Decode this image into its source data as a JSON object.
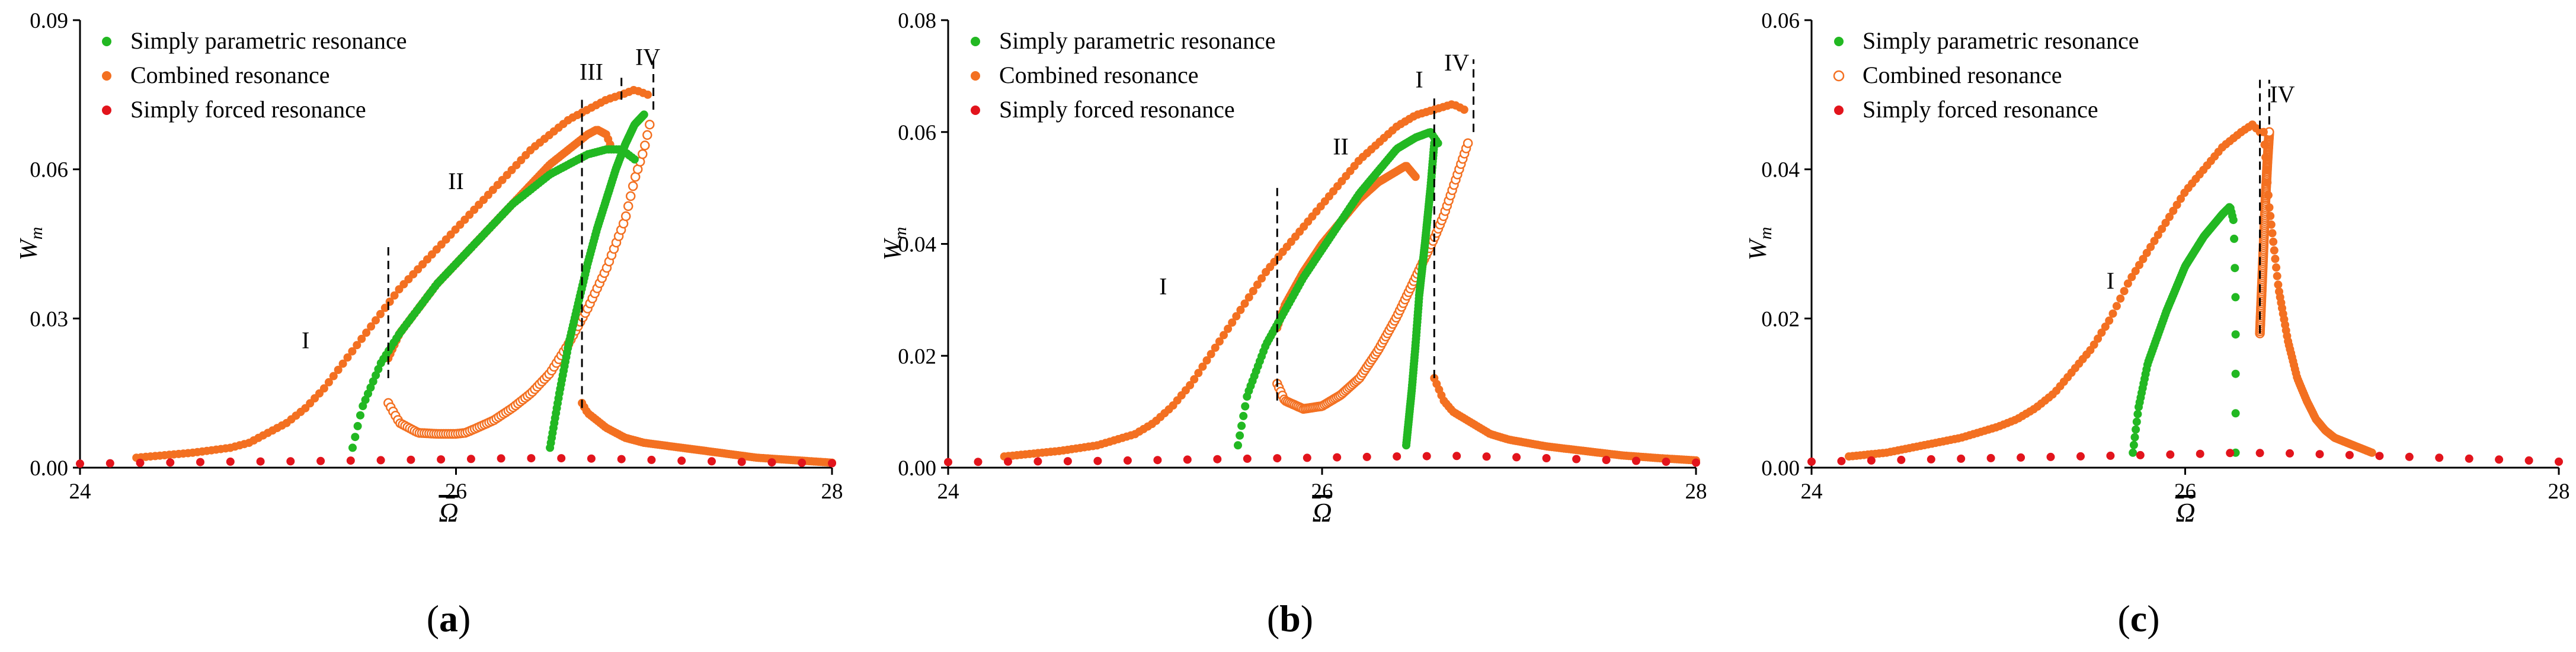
{
  "colors": {
    "parametric": "#22b822",
    "combined": "#f37021",
    "forced": "#e2141c"
  },
  "chart_data": [
    {
      "type": "scatter",
      "panel_label": "a",
      "xlabel": "Ω",
      "ylabel": "W",
      "ylabel_sub": "m",
      "xlim": [
        24,
        28
      ],
      "ylim": [
        0,
        0.09
      ],
      "xticks": [
        24,
        26,
        28
      ],
      "xtick_labels": [
        "24",
        "26",
        "28"
      ],
      "yticks": [
        0,
        0.03,
        0.06,
        0.09
      ],
      "ytick_labels": [
        "0.00",
        "0.03",
        "0.06",
        "0.09"
      ],
      "legend": [
        {
          "label": "Simply parametric resonance",
          "series": "parametric",
          "marker": "filled"
        },
        {
          "label": "Combined resonance",
          "series": "combined",
          "marker": "filled"
        },
        {
          "label": "Simply forced resonance",
          "series": "forced",
          "marker": "filled"
        }
      ],
      "regions": [
        {
          "label": "I",
          "x": 25.2,
          "y": 0.024
        },
        {
          "label": "II",
          "x": 26.0,
          "y": 0.056
        },
        {
          "label": "III",
          "x": 26.72,
          "y": 0.078
        },
        {
          "label": "IV",
          "x": 27.02,
          "y": 0.081
        }
      ],
      "boundaries": [
        {
          "x": 25.64,
          "y0": 0.018,
          "y1": 0.045
        },
        {
          "x": 26.67,
          "y0": 0.012,
          "y1": 0.075
        },
        {
          "x": 26.88,
          "y0": 0.074,
          "y1": 0.079
        },
        {
          "x": 27.05,
          "y0": 0.072,
          "y1": 0.083
        }
      ],
      "series": [
        {
          "name": "Combined resonance (stable, upper branch)",
          "color": "combined",
          "marker": "filled",
          "x": [
            24.3,
            24.6,
            24.8,
            24.9,
            25.0,
            25.1,
            25.2,
            25.3,
            25.4,
            25.5,
            25.6,
            25.7,
            25.8,
            25.9,
            26.0,
            26.1,
            26.2,
            26.3,
            26.4,
            26.5,
            26.6,
            26.7,
            26.8,
            26.88,
            26.95,
            27.02
          ],
          "y": [
            0.002,
            0.003,
            0.004,
            0.005,
            0.007,
            0.009,
            0.012,
            0.016,
            0.021,
            0.026,
            0.031,
            0.036,
            0.04,
            0.044,
            0.048,
            0.052,
            0.056,
            0.06,
            0.064,
            0.067,
            0.07,
            0.072,
            0.074,
            0.075,
            0.076,
            0.075
          ]
        },
        {
          "name": "Combined resonance (unstable, lower branch)",
          "color": "combined",
          "marker": "open",
          "x": [
            25.64,
            25.7,
            25.75,
            25.8,
            25.9,
            26.0,
            26.05,
            26.1,
            26.2,
            26.3,
            26.4,
            26.5,
            26.6,
            26.7,
            26.8,
            26.9,
            26.95,
            27.0,
            27.03
          ],
          "y": [
            0.013,
            0.009,
            0.008,
            0.007,
            0.0068,
            0.0068,
            0.007,
            0.0078,
            0.0095,
            0.012,
            0.015,
            0.019,
            0.025,
            0.032,
            0.04,
            0.05,
            0.058,
            0.064,
            0.069
          ]
        },
        {
          "name": "Combined resonance (stable, inner branch)",
          "color": "combined",
          "marker": "filled",
          "x": [
            25.64,
            25.7,
            25.8,
            25.9,
            26.0,
            26.1,
            26.2,
            26.3,
            26.4,
            26.5,
            26.6,
            26.7,
            26.75,
            26.8,
            26.82
          ],
          "y": [
            0.022,
            0.027,
            0.032,
            0.037,
            0.041,
            0.045,
            0.049,
            0.053,
            0.057,
            0.061,
            0.064,
            0.067,
            0.068,
            0.067,
            0.065
          ]
        },
        {
          "name": "Combined resonance (stable, decay branch)",
          "color": "combined",
          "marker": "filled",
          "x": [
            26.67,
            26.7,
            26.8,
            26.9,
            27.0,
            27.2,
            27.4,
            27.6,
            27.8,
            28.0
          ],
          "y": [
            0.013,
            0.011,
            0.008,
            0.006,
            0.005,
            0.004,
            0.003,
            0.002,
            0.0015,
            0.001
          ]
        },
        {
          "name": "Simply parametric resonance",
          "color": "parametric",
          "marker": "filled",
          "x": [
            25.45,
            25.5,
            25.6,
            25.7,
            25.8,
            25.9,
            26.0,
            26.1,
            26.2,
            26.3,
            26.4,
            26.5,
            26.6,
            26.7,
            26.8,
            26.88,
            26.95
          ],
          "y": [
            0.004,
            0.012,
            0.021,
            0.027,
            0.032,
            0.037,
            0.041,
            0.045,
            0.049,
            0.053,
            0.056,
            0.059,
            0.061,
            0.063,
            0.064,
            0.064,
            0.062
          ]
        },
        {
          "name": "Simply parametric resonance (right branch)",
          "color": "parametric",
          "marker": "filled",
          "x": [
            26.5,
            26.55,
            26.6,
            26.65,
            26.7,
            26.75,
            26.8,
            26.85,
            26.9,
            26.95,
            27.0
          ],
          "y": [
            0.004,
            0.015,
            0.025,
            0.033,
            0.041,
            0.048,
            0.054,
            0.06,
            0.065,
            0.069,
            0.071
          ]
        },
        {
          "name": "Simply forced resonance",
          "color": "forced",
          "marker": "filled",
          "x": [
            24.0,
            24.4,
            24.8,
            25.2,
            25.6,
            26.0,
            26.3,
            26.6,
            26.9,
            27.2,
            27.6,
            28.0
          ],
          "y": [
            0.0008,
            0.001,
            0.0012,
            0.0013,
            0.0015,
            0.0017,
            0.0019,
            0.0019,
            0.0017,
            0.0014,
            0.0011,
            0.0009
          ]
        }
      ]
    },
    {
      "type": "scatter",
      "panel_label": "b",
      "xlabel": "Ω",
      "ylabel": "W",
      "ylabel_sub": "m",
      "xlim": [
        24,
        28
      ],
      "ylim": [
        0,
        0.08
      ],
      "xticks": [
        24,
        26,
        28
      ],
      "xtick_labels": [
        "24",
        "26",
        "28"
      ],
      "yticks": [
        0,
        0.02,
        0.04,
        0.06,
        0.08
      ],
      "ytick_labels": [
        "0.00",
        "0.02",
        "0.04",
        "0.06",
        "0.08"
      ],
      "legend": [
        {
          "label": "Simply parametric resonance",
          "series": "parametric",
          "marker": "filled"
        },
        {
          "label": "Combined resonance",
          "series": "combined",
          "marker": "filled"
        },
        {
          "label": "Simply forced resonance",
          "series": "forced",
          "marker": "filled"
        }
      ],
      "regions": [
        {
          "label": "I",
          "x": 25.15,
          "y": 0.031
        },
        {
          "label": "II",
          "x": 26.1,
          "y": 0.056
        },
        {
          "label": "I",
          "x": 26.52,
          "y": 0.068
        },
        {
          "label": "IV",
          "x": 26.72,
          "y": 0.071
        }
      ],
      "boundaries": [
        {
          "x": 25.76,
          "y0": 0.012,
          "y1": 0.05
        },
        {
          "x": 26.6,
          "y0": 0.016,
          "y1": 0.066
        },
        {
          "x": 26.81,
          "y0": 0.06,
          "y1": 0.073
        }
      ],
      "series": [
        {
          "name": "Combined resonance (stable, upper branch)",
          "color": "combined",
          "marker": "filled",
          "x": [
            24.3,
            24.6,
            24.8,
            25.0,
            25.1,
            25.2,
            25.3,
            25.4,
            25.5,
            25.6,
            25.7,
            25.8,
            25.9,
            26.0,
            26.1,
            26.2,
            26.3,
            26.4,
            26.5,
            26.6,
            26.7,
            26.76
          ],
          "y": [
            0.002,
            0.003,
            0.004,
            0.006,
            0.008,
            0.011,
            0.015,
            0.02,
            0.025,
            0.03,
            0.035,
            0.039,
            0.043,
            0.047,
            0.051,
            0.055,
            0.058,
            0.061,
            0.063,
            0.064,
            0.065,
            0.064
          ]
        },
        {
          "name": "Combined resonance (unstable, lower branch)",
          "color": "combined",
          "marker": "open",
          "x": [
            25.76,
            25.8,
            25.9,
            26.0,
            26.1,
            26.2,
            26.3,
            26.4,
            26.5,
            26.6,
            26.65,
            26.7,
            26.75,
            26.78
          ],
          "y": [
            0.015,
            0.012,
            0.0105,
            0.011,
            0.013,
            0.016,
            0.021,
            0.027,
            0.034,
            0.041,
            0.045,
            0.05,
            0.055,
            0.058
          ]
        },
        {
          "name": "Combined resonance (stable, inner branch)",
          "color": "combined",
          "marker": "filled",
          "x": [
            25.76,
            25.8,
            25.9,
            26.0,
            26.1,
            26.2,
            26.3,
            26.4,
            26.45,
            26.5
          ],
          "y": [
            0.025,
            0.029,
            0.035,
            0.04,
            0.044,
            0.048,
            0.051,
            0.053,
            0.054,
            0.052
          ]
        },
        {
          "name": "Combined resonance (stable, decay branch)",
          "color": "combined",
          "marker": "filled",
          "x": [
            26.6,
            26.65,
            26.7,
            26.8,
            26.9,
            27.0,
            27.2,
            27.4,
            27.6,
            27.8,
            28.0
          ],
          "y": [
            0.016,
            0.012,
            0.01,
            0.008,
            0.006,
            0.005,
            0.0038,
            0.003,
            0.0022,
            0.0017,
            0.0013
          ]
        },
        {
          "name": "Simply parametric resonance",
          "color": "parametric",
          "marker": "filled",
          "x": [
            25.55,
            25.6,
            25.7,
            25.8,
            25.9,
            26.0,
            26.1,
            26.2,
            26.3,
            26.4,
            26.5,
            26.58,
            26.62
          ],
          "y": [
            0.004,
            0.013,
            0.022,
            0.028,
            0.034,
            0.039,
            0.044,
            0.049,
            0.053,
            0.057,
            0.059,
            0.06,
            0.058
          ]
        },
        {
          "name": "Simply parametric resonance (right branch)",
          "color": "parametric",
          "marker": "filled",
          "x": [
            26.45,
            26.48,
            26.5,
            26.52,
            26.55,
            26.58,
            26.6
          ],
          "y": [
            0.004,
            0.014,
            0.022,
            0.031,
            0.04,
            0.05,
            0.058
          ]
        },
        {
          "name": "Simply forced resonance",
          "color": "forced",
          "marker": "filled",
          "x": [
            24.0,
            24.4,
            24.8,
            25.2,
            25.6,
            26.0,
            26.4,
            26.7,
            27.0,
            27.4,
            27.8,
            28.0
          ],
          "y": [
            0.001,
            0.0011,
            0.0012,
            0.0014,
            0.0016,
            0.0018,
            0.002,
            0.0021,
            0.0019,
            0.0015,
            0.0011,
            0.0009
          ]
        }
      ]
    },
    {
      "type": "scatter",
      "panel_label": "c",
      "xlabel": "Ω",
      "ylabel": "W",
      "ylabel_sub": "m",
      "xlim": [
        24,
        28
      ],
      "ylim": [
        0,
        0.06
      ],
      "xticks": [
        24,
        26,
        28
      ],
      "xtick_labels": [
        "24",
        "26",
        "28"
      ],
      "yticks": [
        0,
        0.02,
        0.04,
        0.06
      ],
      "ytick_labels": [
        "0.00",
        "0.02",
        "0.04",
        "0.06"
      ],
      "legend": [
        {
          "label": "Simply parametric resonance",
          "series": "parametric",
          "marker": "filled"
        },
        {
          "label": "Combined resonance",
          "series": "combined",
          "marker": "open"
        },
        {
          "label": "Simply forced resonance",
          "series": "forced",
          "marker": "filled"
        }
      ],
      "regions": [
        {
          "label": "I",
          "x": 25.6,
          "y": 0.024
        },
        {
          "label": "IV",
          "x": 26.52,
          "y": 0.049
        }
      ],
      "boundaries": [
        {
          "x": 26.4,
          "y0": 0.018,
          "y1": 0.052
        },
        {
          "x": 26.45,
          "y0": 0.046,
          "y1": 0.052
        }
      ],
      "series": [
        {
          "name": "Combined resonance (stable, upper branch)",
          "color": "combined",
          "marker": "filled",
          "x": [
            24.2,
            24.4,
            24.6,
            24.8,
            25.0,
            25.1,
            25.2,
            25.3,
            25.4,
            25.5,
            25.6,
            25.7,
            25.8,
            25.9,
            26.0,
            26.1,
            26.2,
            26.3,
            26.36,
            26.4
          ],
          "y": [
            0.0015,
            0.002,
            0.003,
            0.004,
            0.0055,
            0.0065,
            0.008,
            0.01,
            0.013,
            0.016,
            0.02,
            0.025,
            0.029,
            0.033,
            0.037,
            0.04,
            0.043,
            0.045,
            0.046,
            0.045
          ]
        },
        {
          "name": "Combined resonance (unstable branch)",
          "color": "combined",
          "marker": "open",
          "x": [
            26.4,
            26.41,
            26.42,
            26.43,
            26.44,
            26.45
          ],
          "y": [
            0.018,
            0.024,
            0.03,
            0.036,
            0.041,
            0.045
          ]
        },
        {
          "name": "Combined resonance (stable, decay branch)",
          "color": "combined",
          "marker": "filled",
          "x": [
            26.42,
            26.45,
            26.5,
            26.55,
            26.6,
            26.65,
            26.7,
            26.75,
            26.8,
            26.9,
            27.0
          ],
          "y": [
            0.045,
            0.035,
            0.024,
            0.017,
            0.012,
            0.009,
            0.0065,
            0.005,
            0.004,
            0.003,
            0.002
          ]
        },
        {
          "name": "Simply parametric resonance",
          "color": "parametric",
          "marker": "filled",
          "x": [
            25.72,
            25.75,
            25.8,
            25.9,
            26.0,
            26.1,
            26.2,
            26.24,
            26.26,
            26.27,
            26.27,
            26.27
          ],
          "y": [
            0.002,
            0.008,
            0.014,
            0.021,
            0.027,
            0.031,
            0.034,
            0.035,
            0.033,
            0.022,
            0.012,
            0.002
          ]
        },
        {
          "name": "Simply forced resonance",
          "color": "forced",
          "marker": "filled",
          "x": [
            24.0,
            24.4,
            24.8,
            25.2,
            25.6,
            26.0,
            26.3,
            26.6,
            27.0,
            27.4,
            27.8,
            28.0
          ],
          "y": [
            0.0008,
            0.001,
            0.0012,
            0.0014,
            0.0016,
            0.0018,
            0.002,
            0.0019,
            0.0016,
            0.0013,
            0.001,
            0.0008
          ]
        }
      ]
    }
  ]
}
